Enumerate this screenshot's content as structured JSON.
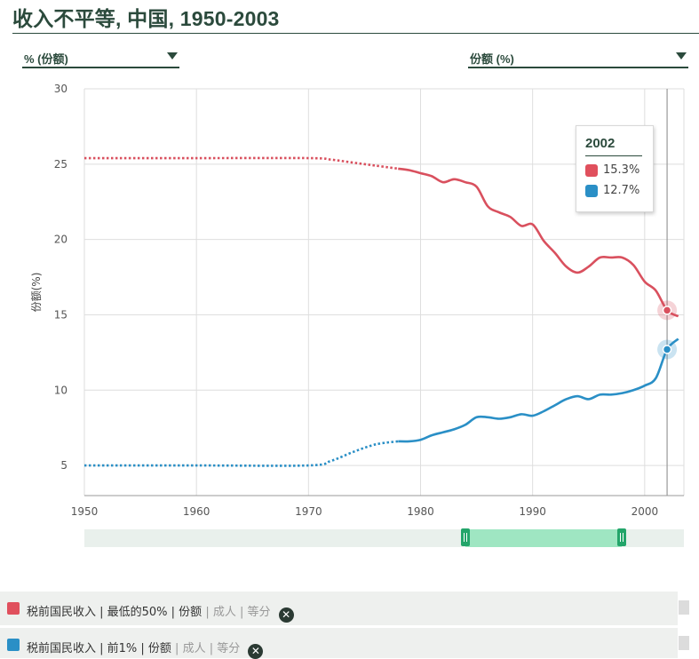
{
  "page": {
    "title": "收入不平等, 中国, 1950-2003",
    "unit_selector": "% (份额)",
    "metric_selector": "份额 (%)"
  },
  "chart_data": {
    "type": "line",
    "ylabel": "份额(%)",
    "xlim": [
      1950,
      2003.5
    ],
    "ylim": [
      3,
      30
    ],
    "x_ticks": [
      "1950",
      "1960",
      "1970",
      "1980",
      "1990",
      "2000"
    ],
    "y_ticks": [
      "5",
      "10",
      "15",
      "20",
      "25",
      "30"
    ],
    "grid": true,
    "series": [
      {
        "color": "#d9505e",
        "dotted_until": 1978,
        "points": [
          [
            1950,
            25.4
          ],
          [
            1960,
            25.4
          ],
          [
            1970,
            25.4
          ],
          [
            1972,
            25.3
          ],
          [
            1974,
            25.1
          ],
          [
            1976,
            24.9
          ],
          [
            1978,
            24.7
          ],
          [
            1979,
            24.6
          ],
          [
            1980,
            24.4
          ],
          [
            1981,
            24.2
          ],
          [
            1982,
            23.8
          ],
          [
            1983,
            24.0
          ],
          [
            1984,
            23.8
          ],
          [
            1985,
            23.5
          ],
          [
            1986,
            22.2
          ],
          [
            1987,
            21.8
          ],
          [
            1988,
            21.5
          ],
          [
            1989,
            20.9
          ],
          [
            1990,
            21.0
          ],
          [
            1991,
            19.9
          ],
          [
            1992,
            19.1
          ],
          [
            1993,
            18.2
          ],
          [
            1994,
            17.8
          ],
          [
            1995,
            18.2
          ],
          [
            1996,
            18.8
          ],
          [
            1997,
            18.8
          ],
          [
            1998,
            18.8
          ],
          [
            1999,
            18.3
          ],
          [
            2000,
            17.2
          ],
          [
            2001,
            16.6
          ],
          [
            2002,
            15.3
          ],
          [
            2003,
            14.9
          ]
        ]
      },
      {
        "color": "#2a8fc6",
        "dotted_until": 1978,
        "points": [
          [
            1950,
            5.0
          ],
          [
            1960,
            5.0
          ],
          [
            1970,
            5.0
          ],
          [
            1972,
            5.3
          ],
          [
            1974,
            5.9
          ],
          [
            1976,
            6.4
          ],
          [
            1978,
            6.6
          ],
          [
            1979,
            6.6
          ],
          [
            1980,
            6.7
          ],
          [
            1981,
            7.0
          ],
          [
            1982,
            7.2
          ],
          [
            1983,
            7.4
          ],
          [
            1984,
            7.7
          ],
          [
            1985,
            8.2
          ],
          [
            1986,
            8.2
          ],
          [
            1987,
            8.1
          ],
          [
            1988,
            8.2
          ],
          [
            1989,
            8.4
          ],
          [
            1990,
            8.3
          ],
          [
            1991,
            8.6
          ],
          [
            1992,
            9.0
          ],
          [
            1993,
            9.4
          ],
          [
            1994,
            9.6
          ],
          [
            1995,
            9.4
          ],
          [
            1996,
            9.7
          ],
          [
            1997,
            9.7
          ],
          [
            1998,
            9.8
          ],
          [
            1999,
            10.0
          ],
          [
            2000,
            10.3
          ],
          [
            2001,
            10.8
          ],
          [
            2002,
            12.7
          ],
          [
            2003,
            13.4
          ]
        ]
      }
    ],
    "highlight_year": 2002
  },
  "tooltip": {
    "year": "2002",
    "rows": [
      {
        "color": "#e0505d",
        "value": "15.3%"
      },
      {
        "color": "#2a8fc6",
        "value": "12.7%"
      }
    ]
  },
  "legend": [
    {
      "color": "#e0505d",
      "main": "税前国民收入 | 最低的50% | 份额",
      "sep": " | ",
      "muted": "成人 | 等分"
    },
    {
      "color": "#2a8fc6",
      "main": "税前国民收入 | 前1% | 份额",
      "sep": " | ",
      "muted": "成人 | 等分"
    }
  ],
  "range_slider": {
    "start_year": 1984,
    "end_year": 1998
  }
}
